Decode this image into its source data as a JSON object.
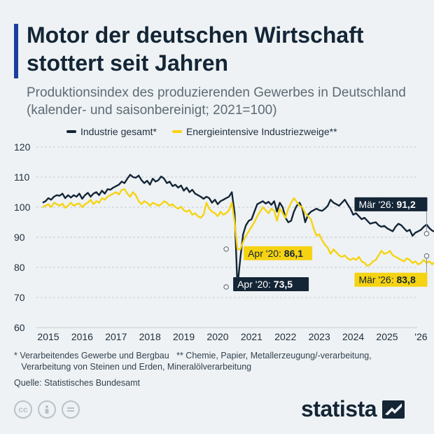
{
  "header": {
    "title": "Motor der deutschen Wirtschaft stottert seit Jahren",
    "subtitle": "Produktionsindex des produzierenden Gewerbes in Deutschland (kalender- und saisonbereinigt; 2021=100)"
  },
  "footer": {
    "footnote_1": "* Verarbeitendes Gewerbe und Bergbau   ** Chemie, Papier, Metallerzeugung/-verarbeitung,",
    "footnote_2": "   Verarbeitung von Steinen und Erden, Mineralölverarbeitung",
    "source": "Quelle: Statistisches Bundesamt",
    "cc_icons": [
      "cc-icon",
      "person-icon",
      "equals-icon"
    ],
    "brand": "statista"
  },
  "colors": {
    "industry": "#142536",
    "energy": "#f6d312",
    "grid": "#c3cbd2",
    "background": "#eef2f4",
    "accent": "#1a3fa0"
  },
  "chart_data": {
    "type": "line",
    "x_ticks": [
      "2015",
      "2016",
      "2017",
      "2018",
      "2019",
      "2020",
      "2021",
      "2022",
      "2023",
      "2024",
      "2025",
      "'26"
    ],
    "ylim": [
      60,
      120
    ],
    "yticks": [
      60,
      70,
      80,
      90,
      100,
      110,
      120
    ],
    "grid": true,
    "legend_position": "top",
    "series": [
      {
        "name": "Industrie gesamt*",
        "start": "2014-11",
        "frequency": "monthly",
        "values": [
          101.5,
          102.0,
          103.0,
          102.5,
          103.5,
          104.0,
          103.8,
          104.5,
          103.0,
          104.0,
          103.2,
          104.0,
          103.5,
          104.5,
          102.8,
          104.0,
          104.8,
          103.5,
          104.5,
          105.0,
          104.0,
          105.5,
          104.5,
          106.0,
          105.8,
          106.5,
          107.0,
          107.5,
          108.5,
          108.0,
          109.5,
          110.8,
          110.0,
          109.8,
          110.5,
          109.0,
          108.0,
          108.8,
          107.5,
          109.5,
          108.5,
          109.0,
          110.2,
          109.5,
          108.0,
          108.5,
          107.0,
          107.5,
          106.5,
          107.2,
          105.5,
          106.5,
          105.0,
          105.8,
          104.5,
          104.0,
          103.5,
          102.8,
          103.5,
          103.0,
          101.5,
          102.5,
          101.0,
          102.0,
          102.5,
          103.0,
          103.5,
          105.0,
          98.0,
          73.5,
          83.0,
          91.0,
          94.0,
          95.5,
          96.0,
          98.5,
          101.0,
          101.5,
          102.0,
          101.2,
          101.8,
          100.8,
          102.0,
          98.5,
          101.5,
          100.0,
          96.5,
          95.0,
          95.5,
          98.5,
          100.5,
          101.5,
          99.5,
          95.0,
          97.5,
          98.5,
          99.0,
          99.5,
          99.0,
          98.8,
          99.5,
          100.5,
          102.5,
          101.5,
          101.0,
          100.5,
          101.5,
          102.5,
          101.0,
          99.5,
          97.5,
          98.0,
          97.0,
          96.0,
          96.5,
          95.5,
          94.5,
          94.8,
          95.0,
          94.0,
          93.5,
          93.8,
          93.0,
          92.5,
          92.0,
          93.5,
          94.5,
          94.0,
          93.0,
          92.0,
          92.5,
          90.5,
          91.5,
          92.0,
          92.5,
          93.5,
          94.2,
          93.0,
          92.2,
          91.8,
          91.2
        ]
      },
      {
        "name": "Energieintensive Industriezweige**",
        "start": "2014-11",
        "frequency": "monthly",
        "values": [
          100.0,
          100.5,
          101.0,
          100.0,
          101.5,
          101.0,
          100.5,
          101.2,
          99.8,
          100.5,
          101.5,
          100.5,
          101.0,
          101.2,
          100.0,
          101.0,
          101.5,
          102.5,
          101.0,
          102.0,
          101.5,
          103.0,
          102.5,
          103.5,
          104.0,
          104.5,
          105.0,
          104.2,
          105.8,
          106.0,
          104.5,
          103.5,
          105.0,
          104.0,
          102.0,
          101.0,
          102.0,
          101.5,
          100.5,
          101.5,
          101.0,
          100.5,
          101.0,
          102.0,
          101.5,
          100.5,
          101.0,
          100.0,
          99.5,
          100.2,
          99.0,
          98.5,
          99.0,
          97.5,
          98.0,
          97.0,
          96.5,
          97.5,
          101.5,
          99.5,
          98.5,
          98.0,
          97.0,
          98.5,
          97.5,
          98.0,
          99.0,
          101.5,
          95.0,
          86.1,
          86.0,
          88.5,
          90.5,
          92.0,
          93.5,
          95.0,
          97.0,
          98.5,
          100.0,
          99.0,
          98.0,
          99.5,
          98.8,
          95.5,
          99.5,
          98.0,
          96.5,
          99.5,
          101.5,
          103.0,
          101.8,
          100.5,
          100.0,
          98.0,
          97.0,
          96.0,
          93.0,
          90.5,
          91.0,
          89.0,
          87.5,
          86.5,
          84.5,
          86.0,
          85.0,
          84.0,
          83.5,
          84.0,
          83.0,
          82.5,
          83.0,
          82.5,
          83.5,
          82.0,
          81.5,
          80.5,
          81.0,
          82.0,
          82.5,
          84.0,
          85.5,
          84.5,
          84.8,
          85.5,
          84.0,
          83.5,
          83.0,
          82.5,
          82.0,
          83.0,
          82.5,
          81.5,
          82.0,
          81.0,
          81.5,
          82.5,
          81.5,
          82.0,
          81.0,
          82.0,
          83.0,
          83.8
        ]
      }
    ],
    "annotations": [
      {
        "text_prefix": "Apr '20: ",
        "text_value": "73,5",
        "series": 0,
        "date": "2020-04",
        "value": 73.5
      },
      {
        "text_prefix": "Apr '20: ",
        "text_value": "86,1",
        "series": 1,
        "date": "2020-04",
        "value": 86.1
      },
      {
        "text_prefix": "Mär '26: ",
        "text_value": "91,2",
        "series": 0,
        "date": "2026-03",
        "value": 91.2
      },
      {
        "text_prefix": "Mär '26: ",
        "text_value": "83,8",
        "series": 1,
        "date": "2026-03",
        "value": 83.8
      }
    ]
  }
}
